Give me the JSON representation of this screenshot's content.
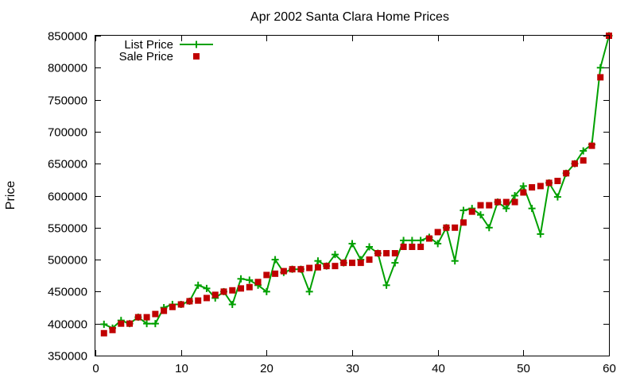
{
  "chart_data": {
    "type": "line",
    "title": "Apr 2002 Santa Clara Home Prices",
    "xlabel": "",
    "ylabel": "Price",
    "xlim": [
      0,
      60
    ],
    "ylim": [
      350000,
      850000
    ],
    "xticks": [
      0,
      10,
      20,
      30,
      40,
      50,
      60
    ],
    "yticks": [
      350000,
      400000,
      450000,
      500000,
      550000,
      600000,
      650000,
      700000,
      750000,
      800000,
      850000
    ],
    "grid": false,
    "legend_position": "top-left",
    "series": [
      {
        "name": "List Price",
        "style": "line+cross",
        "color": "#00a000",
        "x": [
          1,
          2,
          3,
          4,
          5,
          6,
          7,
          8,
          9,
          10,
          11,
          12,
          13,
          14,
          15,
          16,
          17,
          18,
          19,
          20,
          21,
          22,
          23,
          24,
          25,
          26,
          27,
          28,
          29,
          30,
          31,
          32,
          33,
          34,
          35,
          36,
          37,
          38,
          39,
          40,
          41,
          42,
          43,
          44,
          45,
          46,
          47,
          48,
          49,
          50,
          51,
          52,
          53,
          54,
          55,
          56,
          57,
          58,
          59,
          60
        ],
        "values": [
          399000,
          393000,
          405000,
          400000,
          410000,
          400000,
          400000,
          425000,
          430000,
          430000,
          435000,
          460000,
          455000,
          440000,
          450000,
          430000,
          470000,
          468000,
          460000,
          450000,
          500000,
          480000,
          485000,
          485000,
          450000,
          498000,
          490000,
          508000,
          495000,
          525000,
          500000,
          520000,
          510000,
          460000,
          495000,
          530000,
          530000,
          530000,
          535000,
          525000,
          550000,
          498000,
          577000,
          580000,
          570000,
          550000,
          590000,
          580000,
          600000,
          615000,
          580000,
          540000,
          620000,
          598000,
          635000,
          650000,
          670000,
          680000,
          800000,
          850000
        ]
      },
      {
        "name": "Sale Price",
        "style": "square",
        "color": "#c00000",
        "x": [
          1,
          2,
          3,
          4,
          5,
          6,
          7,
          8,
          9,
          10,
          11,
          12,
          13,
          14,
          15,
          16,
          17,
          18,
          19,
          20,
          21,
          22,
          23,
          24,
          25,
          26,
          27,
          28,
          29,
          30,
          31,
          32,
          33,
          34,
          35,
          36,
          37,
          38,
          39,
          40,
          41,
          42,
          43,
          44,
          45,
          46,
          47,
          48,
          49,
          50,
          51,
          52,
          53,
          54,
          55,
          56,
          57,
          58,
          59,
          60
        ],
        "values": [
          385000,
          390000,
          400000,
          400000,
          410000,
          410000,
          415000,
          420000,
          426000,
          430000,
          435000,
          436000,
          440000,
          445000,
          450000,
          452000,
          455000,
          457000,
          465000,
          476000,
          478000,
          482000,
          485000,
          485000,
          487000,
          488000,
          490000,
          490000,
          495000,
          495000,
          495000,
          500000,
          510000,
          510000,
          510000,
          520000,
          520000,
          520000,
          533000,
          543000,
          550000,
          550000,
          558000,
          575000,
          585000,
          585000,
          590000,
          590000,
          590000,
          605000,
          613000,
          615000,
          620000,
          623000,
          635000,
          650000,
          655000,
          678000,
          785000,
          850000
        ]
      }
    ]
  }
}
